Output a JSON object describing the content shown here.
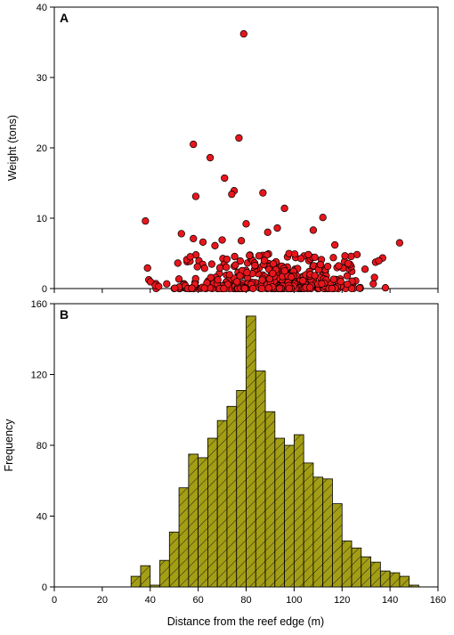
{
  "chart_data": [
    {
      "panel_label": "A",
      "type": "scatter",
      "ylabel": "Weight (tons)",
      "xlim": [
        0,
        160
      ],
      "ylim": [
        0,
        40
      ],
      "yticks": [
        "0",
        "10",
        "20",
        "30",
        "40"
      ],
      "marker_color": "#e8161c",
      "marker_edge": "#000000",
      "notable_points": [
        {
          "x": 79,
          "y": 36.2
        },
        {
          "x": 58,
          "y": 20.5
        },
        {
          "x": 77,
          "y": 21.4
        },
        {
          "x": 65,
          "y": 18.6
        },
        {
          "x": 71,
          "y": 15.7
        },
        {
          "x": 75,
          "y": 13.9
        },
        {
          "x": 74,
          "y": 13.4
        },
        {
          "x": 59,
          "y": 13.1
        },
        {
          "x": 87,
          "y": 13.6
        },
        {
          "x": 96,
          "y": 11.4
        },
        {
          "x": 112,
          "y": 10.1
        },
        {
          "x": 38,
          "y": 9.6
        },
        {
          "x": 80,
          "y": 9.2
        },
        {
          "x": 93,
          "y": 8.6
        },
        {
          "x": 89,
          "y": 8.0
        },
        {
          "x": 108,
          "y": 8.3
        },
        {
          "x": 53,
          "y": 7.8
        },
        {
          "x": 144,
          "y": 6.5
        },
        {
          "x": 70,
          "y": 6.9
        },
        {
          "x": 117,
          "y": 6.2
        },
        {
          "x": 67,
          "y": 6.1
        },
        {
          "x": 78,
          "y": 6.8
        },
        {
          "x": 62,
          "y": 6.6
        },
        {
          "x": 58,
          "y": 7.1
        }
      ],
      "dense_cluster": {
        "x_range": [
          32,
          147
        ],
        "y_range": [
          0,
          5
        ],
        "description_only": false
      }
    },
    {
      "panel_label": "B",
      "type": "bar",
      "xlabel": "Distance from the reef edge (m)",
      "ylabel": "Frequency",
      "xlim": [
        0,
        160
      ],
      "ylim": [
        0,
        160
      ],
      "xticks": [
        "0",
        "20",
        "40",
        "60",
        "80",
        "100",
        "120",
        "140",
        "160"
      ],
      "yticks": [
        "0",
        "40",
        "80",
        "120",
        "160"
      ],
      "bin_width": 4,
      "bin_starts": [
        32,
        36,
        40,
        44,
        48,
        52,
        56,
        60,
        64,
        68,
        72,
        76,
        80,
        84,
        88,
        92,
        96,
        100,
        104,
        108,
        112,
        116,
        120,
        124,
        128,
        132,
        136,
        140,
        144,
        148
      ],
      "values": [
        6,
        12,
        1,
        15,
        31,
        56,
        75,
        73,
        84,
        94,
        102,
        111,
        153,
        122,
        99,
        84,
        80,
        86,
        70,
        62,
        61,
        47,
        26,
        22,
        17,
        14,
        9,
        8,
        6,
        1
      ],
      "bar_color": "#a39e14",
      "hatch": "diagonal"
    }
  ]
}
